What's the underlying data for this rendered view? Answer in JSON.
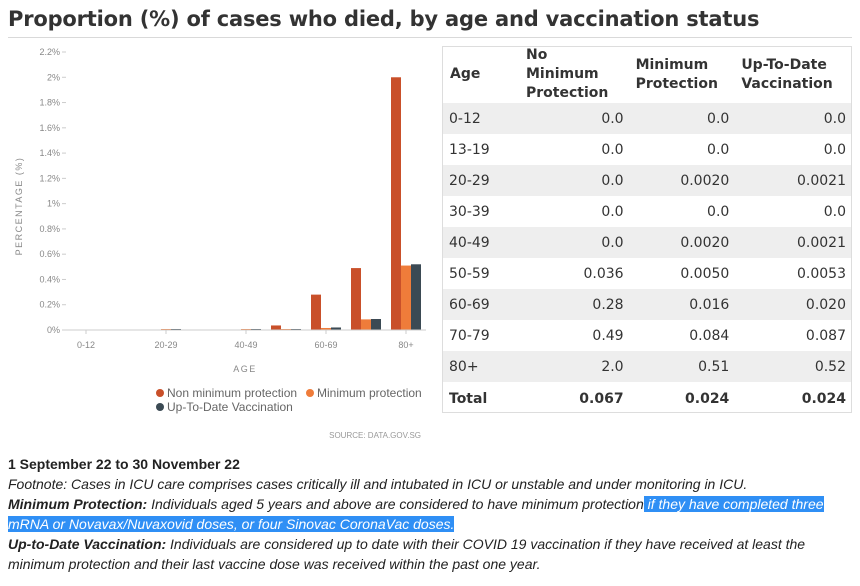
{
  "title": "Proportion (%) of cases who died, by age and vaccination status",
  "chart_data": {
    "type": "bar",
    "categories": [
      "0-12",
      "13-19",
      "20-29",
      "30-39",
      "40-49",
      "50-59",
      "60-69",
      "70-79",
      "80+"
    ],
    "x_tick_labels": [
      "0-12",
      "20-29",
      "40-49",
      "60-69",
      "80+"
    ],
    "series": [
      {
        "name": "Non minimum protection",
        "color": "#c9502a",
        "values": [
          0.0,
          0.0,
          0.0,
          0.0,
          0.0,
          0.036,
          0.28,
          0.49,
          2.0
        ]
      },
      {
        "name": "Minimum protection",
        "color": "#ef7c3a",
        "values": [
          0.0,
          0.0,
          0.002,
          0.0,
          0.002,
          0.005,
          0.016,
          0.084,
          0.51
        ]
      },
      {
        "name": "Up-To-Date Vaccination",
        "color": "#3b4a54",
        "values": [
          0.0,
          0.0,
          0.0021,
          0.0,
          0.0021,
          0.0053,
          0.02,
          0.087,
          0.52
        ]
      }
    ],
    "xlabel": "AGE",
    "ylabel": "PERCENTAGE (%)",
    "ylim": [
      0,
      2.2
    ],
    "yticks": [
      0,
      0.2,
      0.4,
      0.6,
      0.8,
      1,
      1.2,
      1.4,
      1.6,
      1.8,
      2,
      2.2
    ],
    "ytick_labels": [
      "0%",
      "0.2%",
      "0.4%",
      "0.6%",
      "0.8%",
      "1%",
      "1.2%",
      "1.4%",
      "1.6%",
      "1.8%",
      "2%",
      "2.2%"
    ],
    "grid": false,
    "legend_position": "bottom-right",
    "source": "SOURCE: DATA.GOV.SG"
  },
  "table": {
    "headers": [
      "Age",
      "No Minimum Protection",
      "Minimum Protection",
      "Up-To-Date Vaccination"
    ],
    "rows": [
      [
        "0-12",
        "0.0",
        "0.0",
        "0.0"
      ],
      [
        "13-19",
        "0.0",
        "0.0",
        "0.0"
      ],
      [
        "20-29",
        "0.0",
        "0.0020",
        "0.0021"
      ],
      [
        "30-39",
        "0.0",
        "0.0",
        "0.0"
      ],
      [
        "40-49",
        "0.0",
        "0.0020",
        "0.0021"
      ],
      [
        "50-59",
        "0.036",
        "0.0050",
        "0.0053"
      ],
      [
        "60-69",
        "0.28",
        "0.016",
        "0.020"
      ],
      [
        "70-79",
        "0.49",
        "0.084",
        "0.087"
      ],
      [
        "80+",
        "2.0",
        "0.51",
        "0.52"
      ]
    ],
    "total": [
      "Total",
      "0.067",
      "0.024",
      "0.024"
    ]
  },
  "notes": {
    "period": "1 September 22 to 30 November 22",
    "footnote": "Footnote: Cases in ICU care comprises cases critically ill and intubated in ICU or unstable and under monitoring in ICU.",
    "min_label": "Minimum Protection:",
    "min_text": " Individuals aged 5 years and above are considered to have minimum protection",
    "min_highlight": " if they have completed three mRNA or Novavax/Nuvaxovid doses, or four Sinovac CoronaVac doses.",
    "utd_label": "Up-to-Date Vaccination:",
    "utd_text": " Individuals are considered up to date with their COVID 19 vaccination if they have received at least the minimum protection and their last vaccine dose was received within the past one year."
  }
}
